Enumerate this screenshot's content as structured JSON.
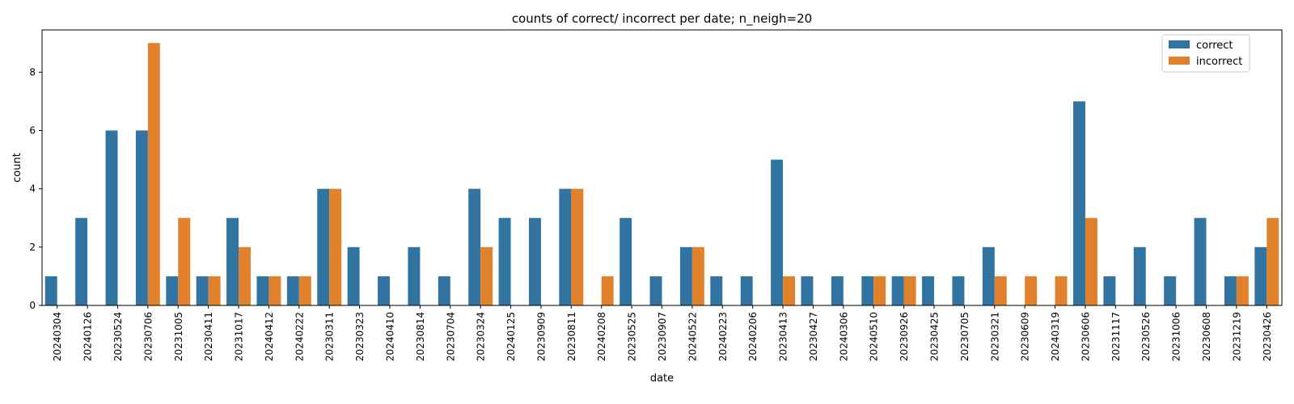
{
  "chart_data": {
    "type": "bar",
    "title": "counts of correct/ incorrect per date; n_neigh=20",
    "xlabel": "date",
    "ylabel": "count",
    "ylim": [
      0,
      9.45
    ],
    "yticks": [
      0,
      2,
      4,
      6,
      8
    ],
    "grid": false,
    "legend_position": "top-right",
    "categories": [
      "20240304",
      "20240126",
      "20230524",
      "20230706",
      "20231005",
      "20230411",
      "20231017",
      "20240412",
      "20240222",
      "20230311",
      "20230323",
      "20240410",
      "20230814",
      "20230704",
      "20230324",
      "20240125",
      "20230909",
      "20230811",
      "20240208",
      "20230525",
      "20230907",
      "20240522",
      "20240223",
      "20240206",
      "20230413",
      "20230427",
      "20240306",
      "20240510",
      "20230926",
      "20230425",
      "20230705",
      "20230321",
      "20230609",
      "20240319",
      "20230606",
      "20231117",
      "20230526",
      "20231006",
      "20230608",
      "20231219",
      "20230426"
    ],
    "series": [
      {
        "name": "correct",
        "color": "#3274a1",
        "values": [
          1,
          3,
          6,
          6,
          1,
          1,
          3,
          1,
          1,
          4,
          2,
          1,
          2,
          1,
          4,
          3,
          3,
          4,
          0,
          3,
          1,
          2,
          1,
          1,
          5,
          1,
          1,
          1,
          1,
          1,
          1,
          2,
          0,
          0,
          7,
          1,
          2,
          1,
          3,
          1,
          2
        ]
      },
      {
        "name": "incorrect",
        "color": "#e1812c",
        "values": [
          0,
          0,
          0,
          9,
          3,
          1,
          2,
          1,
          1,
          4,
          0,
          0,
          0,
          0,
          2,
          0,
          0,
          4,
          1,
          0,
          0,
          2,
          0,
          0,
          1,
          0,
          0,
          1,
          1,
          0,
          0,
          1,
          1,
          1,
          3,
          0,
          0,
          0,
          0,
          1,
          3
        ]
      }
    ]
  }
}
